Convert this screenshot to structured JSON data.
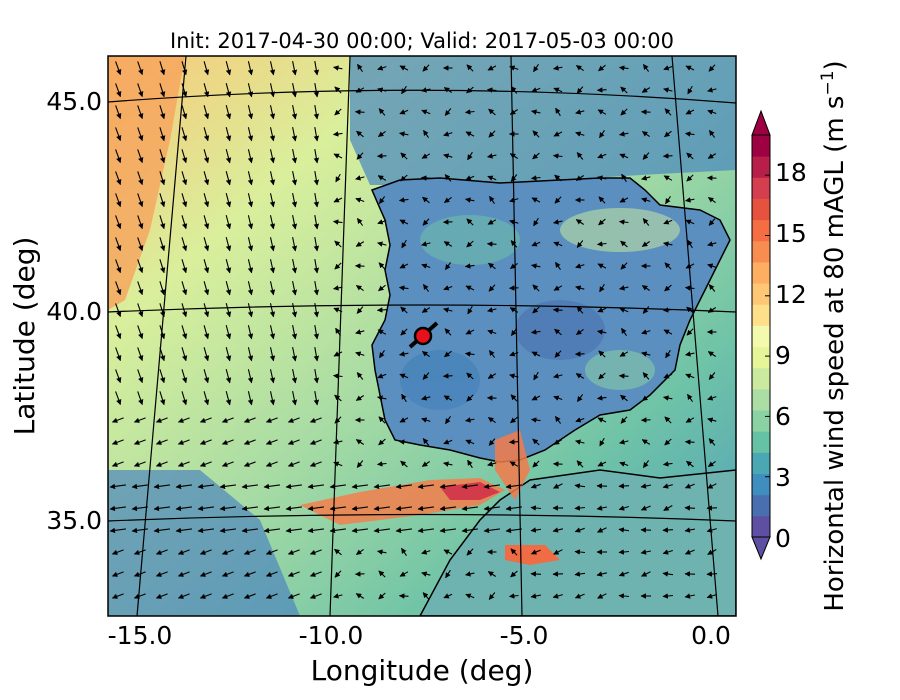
{
  "title": "Init: 2017-04-30 00:00; Valid: 2017-05-03 00:00",
  "xlabel": "Longitude (deg)",
  "ylabel": "Latitude (deg)",
  "x_ticks": [
    "-15.0",
    "-10.0",
    "-5.0",
    "0.0"
  ],
  "y_ticks": [
    "45.0",
    "40.0",
    "35.0"
  ],
  "colorbar": {
    "label": "Horizontal wind speed at 80 mAGL (m s",
    "label_exponent": "−1",
    "label_close": ")",
    "ticks": [
      "0",
      "3",
      "6",
      "9",
      "12",
      "15",
      "18"
    ],
    "range": [
      0,
      20
    ],
    "extend": "both",
    "colors": [
      "#5e4fa2",
      "#4a6fb0",
      "#3e8fbf",
      "#4aa8b4",
      "#66c2a5",
      "#8ad1a4",
      "#abdda4",
      "#ccea9f",
      "#e6f598",
      "#f4faad",
      "#fee08b",
      "#fdc776",
      "#fdae61",
      "#f88d52",
      "#f46d43",
      "#e5533f",
      "#d53e4f",
      "#b81f48",
      "#9e0142"
    ]
  },
  "marker": {
    "lon": -7.7,
    "lat": 39.4,
    "color": "#e8101a"
  },
  "map": {
    "projection": "lambert-conformal",
    "lon_range": [
      -16,
      0
    ],
    "lat_range": [
      33,
      46
    ]
  }
}
